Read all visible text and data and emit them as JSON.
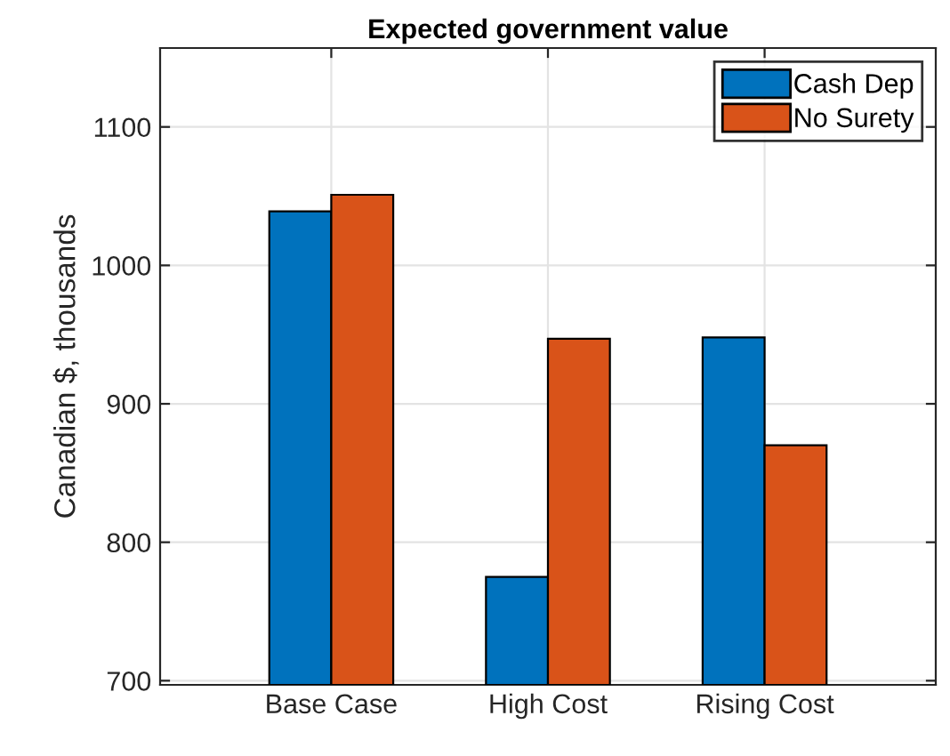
{
  "chart_data": {
    "type": "bar",
    "title": "Expected government value",
    "ylabel": "Canadian $, thousands",
    "categories": [
      "Base Case",
      "High Cost",
      "Rising Cost"
    ],
    "series": [
      {
        "name": "Cash Dep",
        "color": "#0072bd",
        "values": [
          1039,
          775,
          948
        ]
      },
      {
        "name": "No Surety",
        "color": "#d95319",
        "values": [
          1051,
          947,
          870
        ]
      }
    ],
    "ylim": [
      697,
      1157
    ],
    "yticks": [
      700,
      800,
      900,
      1000,
      1100
    ],
    "grid": true,
    "legend": "top right"
  }
}
